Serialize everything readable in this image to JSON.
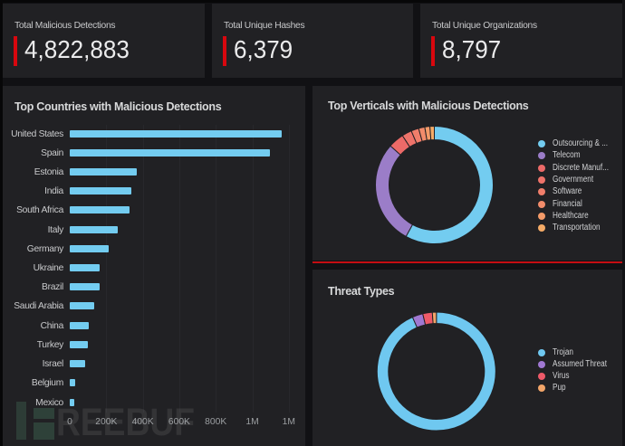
{
  "colors": {
    "page_background": "#111114",
    "panel_background": "#212124",
    "stat_accent_red": "#d8070e",
    "divider_red": "#c40d12",
    "bar_blue": "#73ccf0",
    "title_text": "#d8d9da",
    "label_text": "#c9cacc",
    "axis_text": "#9b9ea1",
    "watermark_green": "#2b4338"
  },
  "stats": [
    {
      "title": "Total Malicious Detections",
      "value": "4,822,883"
    },
    {
      "title": "Total Unique Hashes",
      "value": "6,379"
    },
    {
      "title": "Total Unique Organizations",
      "value": "8,797"
    }
  ],
  "chart_data": [
    {
      "type": "bar",
      "orientation": "horizontal",
      "title": "Top Countries with Malicious Detections",
      "categories": [
        "United States",
        "Spain",
        "Estonia",
        "India",
        "South Africa",
        "Italy",
        "Germany",
        "Ukraine",
        "Brazil",
        "Saudi Arabia",
        "China",
        "Turkey",
        "Israel",
        "Belgium",
        "Mexico"
      ],
      "values": [
        1160000,
        1097000,
        369000,
        337000,
        328000,
        263000,
        215000,
        165000,
        163000,
        133000,
        103000,
        101000,
        83000,
        29000,
        26000
      ],
      "xlim": [
        0,
        1200000
      ],
      "xtick_values": [
        0,
        200000,
        400000,
        600000,
        800000,
        1000000,
        1200000
      ],
      "xtick_labels": [
        "0",
        "200K",
        "400K",
        "600K",
        "800K",
        "1M",
        "1M"
      ],
      "bar_color": "#73ccf0",
      "grid": "vertical",
      "legend": "none"
    },
    {
      "type": "pie",
      "subtype": "donut",
      "title": "Top Verticals with Malicious Detections",
      "legend_position": "right",
      "series": [
        {
          "name": "Outsourcing & ...",
          "value": 58.0,
          "color": "#73ccf0"
        },
        {
          "name": "Telecom",
          "value": 28.6,
          "color": "#9b7dc8"
        },
        {
          "name": "Discrete Manuf...",
          "value": 4.3,
          "color": "#ec6a68"
        },
        {
          "name": "Government",
          "value": 2.7,
          "color": "#ee736a"
        },
        {
          "name": "Software",
          "value": 2.1,
          "color": "#f07e6b"
        },
        {
          "name": "Financial",
          "value": 1.7,
          "color": "#f28c6b"
        },
        {
          "name": "Healthcare",
          "value": 1.4,
          "color": "#f49b69"
        },
        {
          "name": "Transportation",
          "value": 1.2,
          "color": "#f5ab67"
        }
      ]
    },
    {
      "type": "pie",
      "subtype": "donut",
      "title": "Threat Types",
      "legend_position": "right",
      "series": [
        {
          "name": "Trojan",
          "value": 93.4,
          "color": "#6fc8f0"
        },
        {
          "name": "Assumed Threat",
          "value": 2.9,
          "color": "#a078d2"
        },
        {
          "name": "Virus",
          "value": 2.6,
          "color": "#ee5a69"
        },
        {
          "name": "Pup",
          "value": 1.1,
          "color": "#f2a569"
        }
      ]
    }
  ],
  "watermark": {
    "text": "REEBUF",
    "logo": "freebuf-logo"
  }
}
